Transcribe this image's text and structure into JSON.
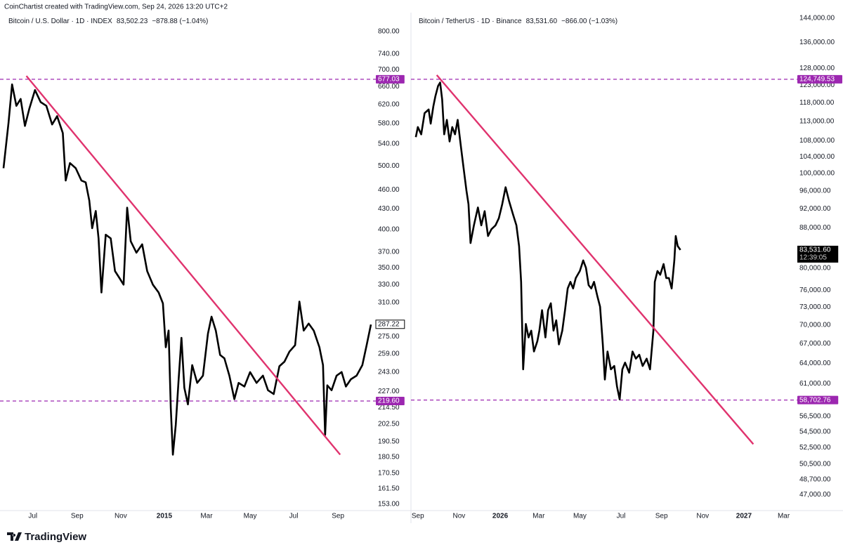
{
  "header": "CoinChartist created with TradingView.com, Sep 24, 2026 13:20 UTC+2",
  "footer": "TradingView",
  "chart_data": [
    {
      "type": "line",
      "title": "Bitcoin / U.S. Dollar · 1D · INDEX",
      "quote": "83,502.23",
      "change": "−878.88 (−1.04%)",
      "log_scale": true,
      "color": "#000000",
      "xlim": [
        -41,
        475
      ],
      "xticks": [
        {
          "value": 0,
          "label": "Jul"
        },
        {
          "value": 62,
          "label": "Sep"
        },
        {
          "value": 123,
          "label": "Nov"
        },
        {
          "value": 184,
          "label": "2015"
        },
        {
          "value": 243,
          "label": "Mar"
        },
        {
          "value": 304,
          "label": "May"
        },
        {
          "value": 365,
          "label": "Jul"
        },
        {
          "value": 427,
          "label": "Sep"
        }
      ],
      "ylim": [
        149.3,
        830
      ],
      "yticks": [
        {
          "value": 800,
          "label": "800.00"
        },
        {
          "value": 740,
          "label": "740.00"
        },
        {
          "value": 700,
          "label": "700.00"
        },
        {
          "value": 660,
          "label": "660.00"
        },
        {
          "value": 620,
          "label": "620.00"
        },
        {
          "value": 580,
          "label": "580.00"
        },
        {
          "value": 540,
          "label": "540.00"
        },
        {
          "value": 500,
          "label": "500.00"
        },
        {
          "value": 460,
          "label": "460.00"
        },
        {
          "value": 430,
          "label": "430.00"
        },
        {
          "value": 400,
          "label": "400.00"
        },
        {
          "value": 370,
          "label": "370.00"
        },
        {
          "value": 350,
          "label": "350.00"
        },
        {
          "value": 330,
          "label": "330.00"
        },
        {
          "value": 310,
          "label": "310.00"
        },
        {
          "value": 275,
          "label": "275.00"
        },
        {
          "value": 259,
          "label": "259.00"
        },
        {
          "value": 243,
          "label": "243.00"
        },
        {
          "value": 227,
          "label": "227.00"
        },
        {
          "value": 214.5,
          "label": "214.50"
        },
        {
          "value": 202.5,
          "label": "202.50"
        },
        {
          "value": 190.5,
          "label": "190.50"
        },
        {
          "value": 180.5,
          "label": "180.50"
        },
        {
          "value": 170.5,
          "label": "170.50"
        },
        {
          "value": 161.5,
          "label": "161.50"
        },
        {
          "value": 153,
          "label": "153.00"
        }
      ],
      "x": [
        -41,
        -34,
        -29,
        -23,
        -17,
        -11,
        -5,
        3,
        11,
        19,
        27,
        34,
        42,
        46,
        52,
        60,
        68,
        74,
        79,
        83,
        88,
        92,
        96,
        102,
        109,
        115,
        121,
        127,
        132,
        137,
        145,
        153,
        160,
        168,
        176,
        182,
        186,
        190,
        193,
        196,
        200,
        204,
        208,
        212,
        217,
        223,
        230,
        238,
        245,
        250,
        256,
        262,
        268,
        275,
        282,
        288,
        296,
        304,
        313,
        322,
        329,
        337,
        345,
        352,
        359,
        367,
        373,
        379,
        386,
        393,
        401,
        406,
        409,
        412,
        418,
        425,
        432,
        438,
        445,
        453,
        461,
        467,
        473
      ],
      "values": [
        496,
        581,
        665,
        617,
        632,
        575,
        610,
        652,
        625,
        617,
        578,
        595,
        561,
        475,
        505,
        496,
        475,
        472,
        443,
        402,
        427,
        388,
        321,
        393,
        388,
        346,
        338,
        330,
        432,
        384,
        369,
        380,
        346,
        330,
        321,
        309,
        265,
        281,
        214.5,
        182,
        202,
        237,
        274,
        230,
        217,
        249,
        234,
        240,
        278,
        295,
        281,
        258,
        255,
        240,
        221,
        234,
        231,
        243,
        234,
        240,
        228,
        225,
        248,
        252,
        261,
        267,
        311,
        281,
        288,
        281,
        265,
        249,
        195,
        232,
        228,
        240,
        243,
        231,
        237,
        240,
        249,
        267,
        287
      ],
      "trendline": {
        "color": "#e0336e",
        "x": [
          -9,
          430
        ],
        "values": [
          685,
          182
        ]
      },
      "levels": [
        {
          "value": 677.03,
          "label": "677.03",
          "color": "#9c27b0"
        },
        {
          "value": 219.6,
          "label": "219.60",
          "color": "#9c27b0"
        }
      ],
      "price_label": {
        "value": 287.22,
        "label": "287.22"
      }
    },
    {
      "type": "line",
      "title": "Bitcoin / TetherUS · 1D · Binance",
      "quote": "83,531.60",
      "change": "−866.00 (−1.03%)",
      "log_scale": true,
      "color": "#000000",
      "xlim": [
        -5,
        557
      ],
      "xticks": [
        {
          "value": 0,
          "label": "Sep"
        },
        {
          "value": 61,
          "label": "Nov"
        },
        {
          "value": 122,
          "label": "2026"
        },
        {
          "value": 179,
          "label": "Mar"
        },
        {
          "value": 240,
          "label": "May"
        },
        {
          "value": 301,
          "label": "Jul"
        },
        {
          "value": 361,
          "label": "Sep"
        },
        {
          "value": 422,
          "label": "Nov"
        },
        {
          "value": 483,
          "label": "2027"
        },
        {
          "value": 542,
          "label": "Mar"
        }
      ],
      "ylim": [
        45200,
        145900
      ],
      "yticks": [
        {
          "value": 144000,
          "label": "144,000.00"
        },
        {
          "value": 136000,
          "label": "136,000.00"
        },
        {
          "value": 128000,
          "label": "128,000.00"
        },
        {
          "value": 123000,
          "label": "123,000.00"
        },
        {
          "value": 118000,
          "label": "118,000.00"
        },
        {
          "value": 113000,
          "label": "113,000.00"
        },
        {
          "value": 108000,
          "label": "108,000.00"
        },
        {
          "value": 104000,
          "label": "104,000.00"
        },
        {
          "value": 100000,
          "label": "100,000.00"
        },
        {
          "value": 96000,
          "label": "96,000.00"
        },
        {
          "value": 92000,
          "label": "92,000.00"
        },
        {
          "value": 88000,
          "label": "88,000.00"
        },
        {
          "value": 80000,
          "label": "80,000.00"
        },
        {
          "value": 76000,
          "label": "76,000.00"
        },
        {
          "value": 73000,
          "label": "73,000.00"
        },
        {
          "value": 70000,
          "label": "70,000.00"
        },
        {
          "value": 67000,
          "label": "67,000.00"
        },
        {
          "value": 64000,
          "label": "64,000.00"
        },
        {
          "value": 61000,
          "label": "61,000.00"
        },
        {
          "value": 56500,
          "label": "56,500.00"
        },
        {
          "value": 54500,
          "label": "54,500.00"
        },
        {
          "value": 52500,
          "label": "52,500.00"
        },
        {
          "value": 50500,
          "label": "50,500.00"
        },
        {
          "value": 48700,
          "label": "48,700.00"
        },
        {
          "value": 47000,
          "label": "47,000.00"
        }
      ],
      "x": [
        -3,
        0,
        5,
        10,
        16,
        19,
        23,
        26,
        30,
        33,
        36,
        39,
        43,
        47,
        51,
        55,
        59,
        64,
        68,
        72,
        75,
        78,
        83,
        89,
        94,
        99,
        104,
        109,
        115,
        120,
        125,
        130,
        135,
        141,
        146,
        150,
        153,
        156,
        160,
        164,
        168,
        172,
        177,
        180,
        184,
        189,
        193,
        197,
        201,
        205,
        209,
        214,
        218,
        222,
        226,
        230,
        234,
        240,
        245,
        249,
        253,
        257,
        261,
        266,
        270,
        274,
        277,
        281,
        286,
        291,
        295,
        299,
        303,
        307,
        313,
        318,
        323,
        328,
        333,
        339,
        344,
        349,
        351,
        355,
        359,
        364,
        368,
        372,
        376,
        378,
        380,
        382,
        385,
        389
      ],
      "values": [
        108900,
        111500,
        109600,
        115200,
        116200,
        112400,
        117100,
        119900,
        122800,
        123800,
        119000,
        109600,
        113400,
        107800,
        111500,
        109600,
        113400,
        106200,
        101000,
        96000,
        93000,
        84900,
        88500,
        92300,
        88500,
        91500,
        86300,
        87700,
        88500,
        90000,
        93000,
        96800,
        93800,
        90800,
        88500,
        84300,
        77500,
        63100,
        70200,
        68000,
        69100,
        65800,
        67400,
        69100,
        72500,
        68000,
        72500,
        73700,
        69100,
        70800,
        66900,
        69100,
        72500,
        76300,
        77500,
        76300,
        78200,
        79500,
        81500,
        80100,
        76900,
        76300,
        77500,
        74900,
        73100,
        66900,
        61600,
        65800,
        63100,
        63600,
        60600,
        58800,
        63100,
        64100,
        62600,
        65800,
        64700,
        65300,
        63600,
        64700,
        63100,
        69100,
        77500,
        79500,
        78800,
        80800,
        78200,
        78200,
        76300,
        78800,
        81500,
        86300,
        84300,
        83530
      ],
      "trendline": {
        "color": "#e0336e",
        "x": [
          28,
          497
        ],
        "values": [
          126000,
          52920
        ]
      },
      "levels": [
        {
          "value": 124749.53,
          "label": "124,749.53",
          "color": "#9c27b0"
        },
        {
          "value": 58702.76,
          "label": "58,702.76",
          "color": "#9c27b0"
        }
      ],
      "price_label": {
        "value": 83531.6,
        "label": "83,531.60",
        "countdown": "12:39:05"
      }
    }
  ]
}
